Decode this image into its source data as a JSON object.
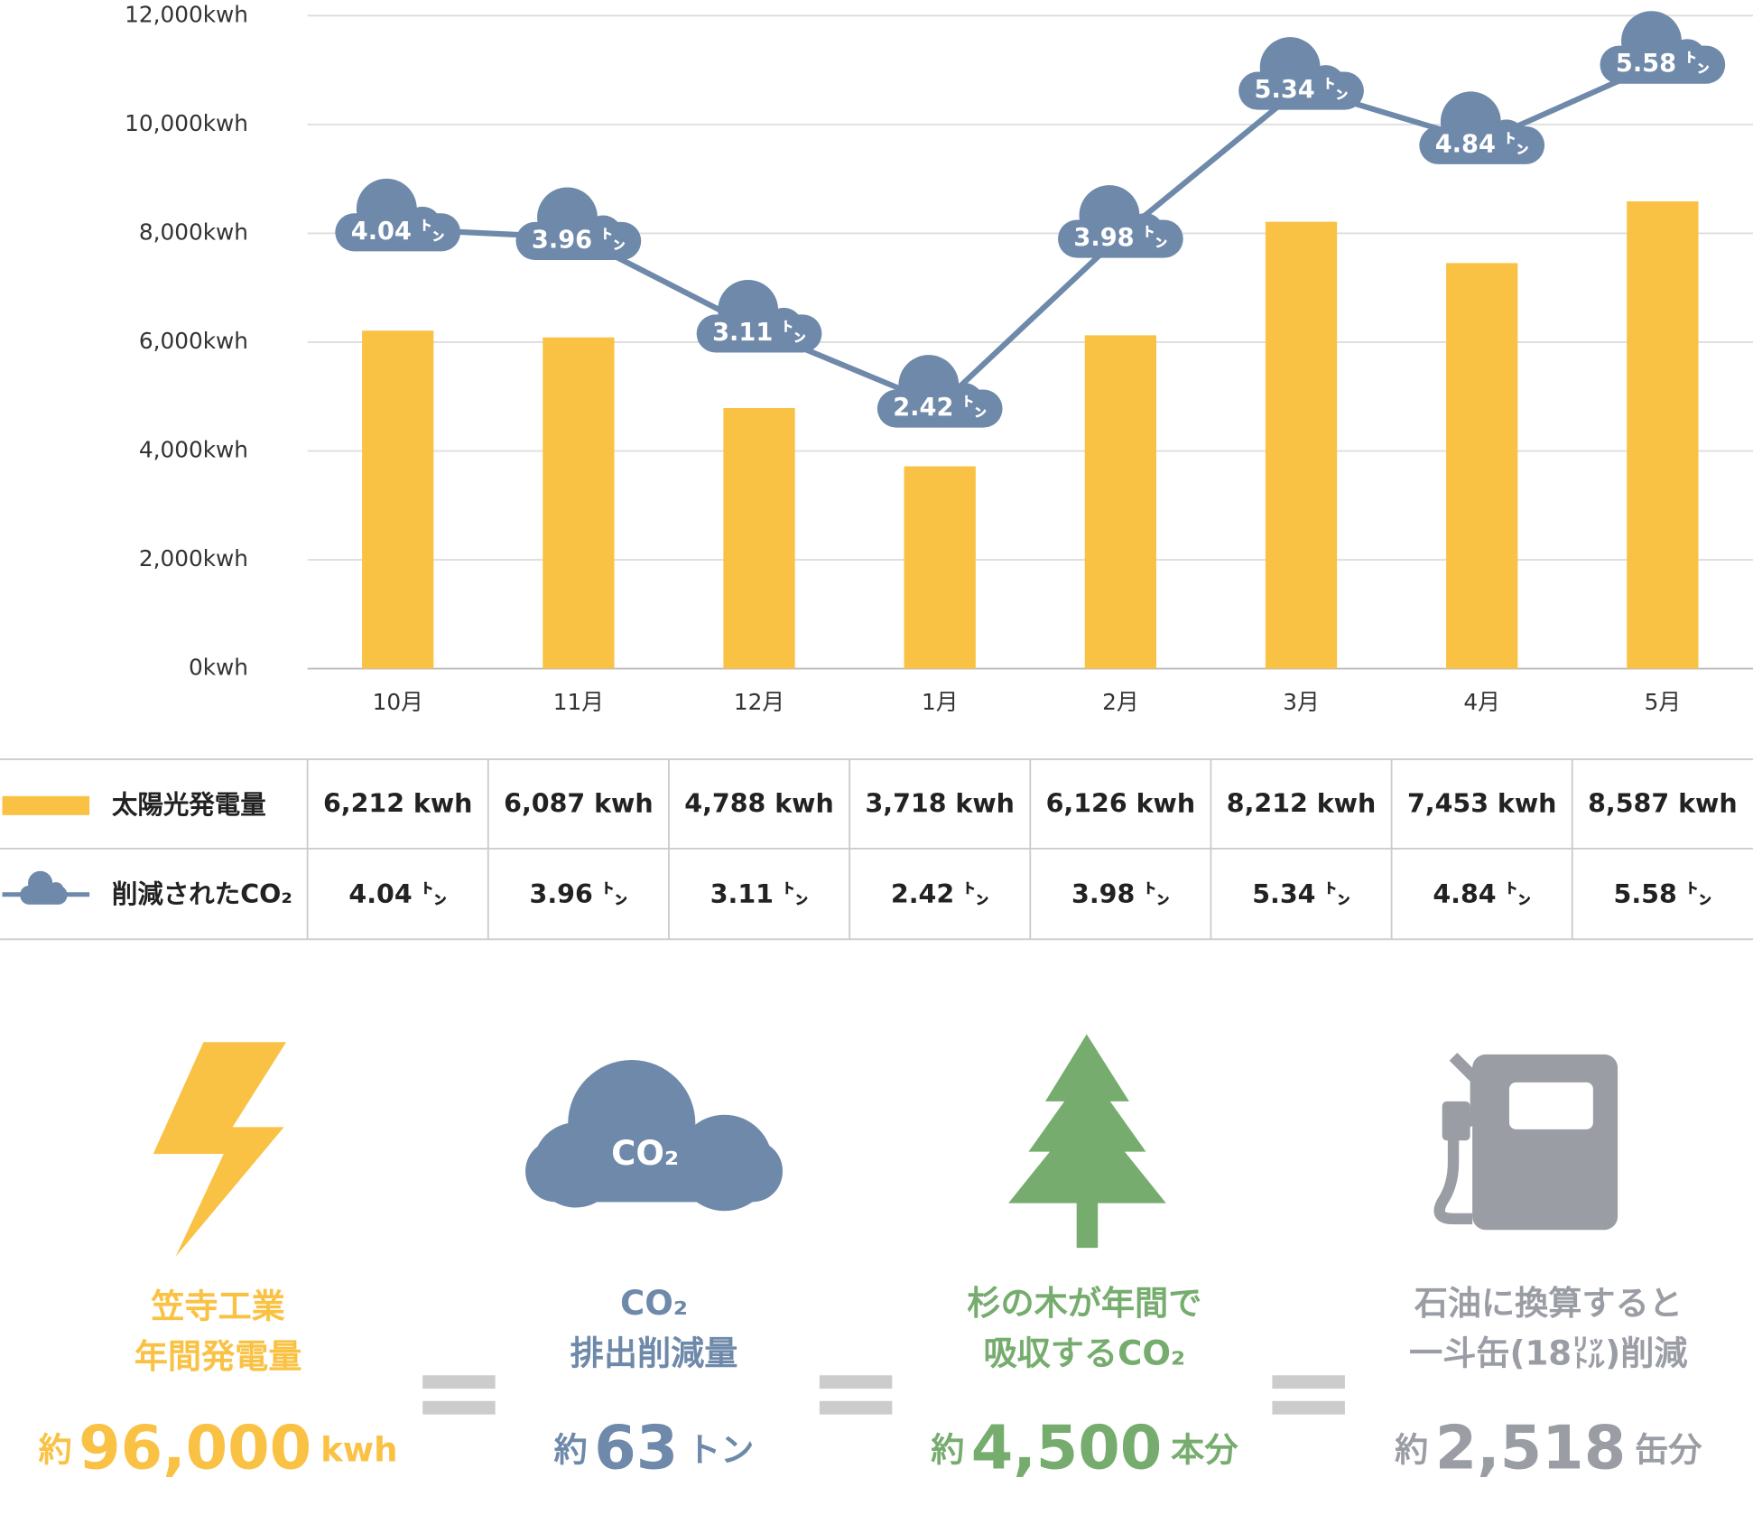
{
  "chart_data": {
    "type": "bar",
    "categories": [
      "10月",
      "11月",
      "12月",
      "1月",
      "2月",
      "3月",
      "4月",
      "5月"
    ],
    "series": [
      {
        "name": "太陽光発電量",
        "color": "#F9C244",
        "values": [
          6212,
          6087,
          4788,
          3718,
          6126,
          8212,
          7453,
          8587
        ],
        "value_labels": [
          "6,212 kwh",
          "6,087 kwh",
          "4,788 kwh",
          "3,718 kwh",
          "6,126 kwh",
          "8,212 kwh",
          "7,453 kwh",
          "8,587 kwh"
        ]
      },
      {
        "name": "削減されたCO₂",
        "type": "line",
        "axis": "y2",
        "color": "#6E89A9",
        "values": [
          4.04,
          3.96,
          3.11,
          2.42,
          3.98,
          5.34,
          4.84,
          5.58
        ],
        "value_labels": [
          "4.04 ㌧",
          "3.96 ㌧",
          "3.11 ㌧",
          "2.42 ㌧",
          "3.98 ㌧",
          "5.34 ㌧",
          "4.84 ㌧",
          "5.58 ㌧"
        ]
      }
    ],
    "ylim": [
      0,
      12000
    ],
    "yticks": [
      {
        "value": 0,
        "label": "0kwh"
      },
      {
        "value": 2000,
        "label": "2,000kwh"
      },
      {
        "value": 4000,
        "label": "4,000kwh"
      },
      {
        "value": 6000,
        "label": "6,000kwh"
      },
      {
        "value": 8000,
        "label": "8,000kwh"
      },
      {
        "value": 10000,
        "label": "10,000kwh"
      },
      {
        "value": 12000,
        "label": "12,000kwh"
      }
    ],
    "y2lim": [
      0,
      6
    ],
    "grid": true
  },
  "infographic": {
    "icon_text": "CO₂",
    "items": [
      {
        "caption": [
          "笠寺工業",
          "年間発電量"
        ],
        "prefix": "約",
        "amount": "96,000",
        "unit": "kwh",
        "color": "#F9C244"
      },
      {
        "caption": [
          "CO₂",
          "排出削減量"
        ],
        "prefix": "約",
        "amount": "63",
        "unit": "トン",
        "color": "#6E89A9"
      },
      {
        "caption": [
          "杉の木が年間で",
          "吸収するCO₂"
        ],
        "prefix": "約",
        "amount": "4,500",
        "unit": "本分",
        "color": "#76AC6E"
      },
      {
        "caption": [
          "石油に換算すると",
          "一斗缶(18㍑)削減"
        ],
        "prefix": "約",
        "amount": "2,518",
        "unit": "缶分",
        "color": "#9A9EA4"
      }
    ]
  }
}
